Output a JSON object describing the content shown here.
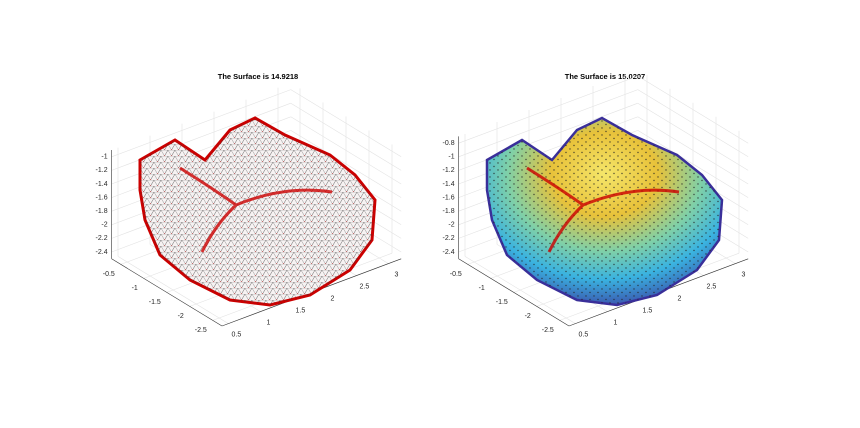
{
  "chart_data": [
    {
      "type": "surface3d",
      "style": "wireframe",
      "title": "The Surface is 14.9218",
      "xlim": [
        0.4,
        3.2
      ],
      "ylim": [
        -2.7,
        -0.3
      ],
      "zlim": [
        -2.5,
        -0.9
      ],
      "xticks": [
        0.5,
        1,
        1.5,
        2,
        2.5,
        3
      ],
      "yticks": [
        -2.5,
        -2,
        -1.5,
        -1,
        -0.5
      ],
      "zticks": [
        -2.4,
        -2.2,
        -2,
        -1.8,
        -1.6,
        -1.4,
        -1.2,
        -1
      ],
      "grid": true
    },
    {
      "type": "surface3d",
      "style": "shaded",
      "title": "The Surface is 15.0207",
      "xlim": [
        0.4,
        3.2
      ],
      "ylim": [
        -2.7,
        -0.3
      ],
      "zlim": [
        -2.5,
        -0.7
      ],
      "xticks": [
        0.5,
        1,
        1.5,
        2,
        2.5,
        3
      ],
      "yticks": [
        -2.5,
        -2,
        -1.5,
        -1,
        -0.5
      ],
      "zticks": [
        -2.4,
        -2.2,
        -2,
        -1.8,
        -1.6,
        -1.4,
        -1.2,
        -1,
        -0.8
      ],
      "grid": true
    }
  ]
}
